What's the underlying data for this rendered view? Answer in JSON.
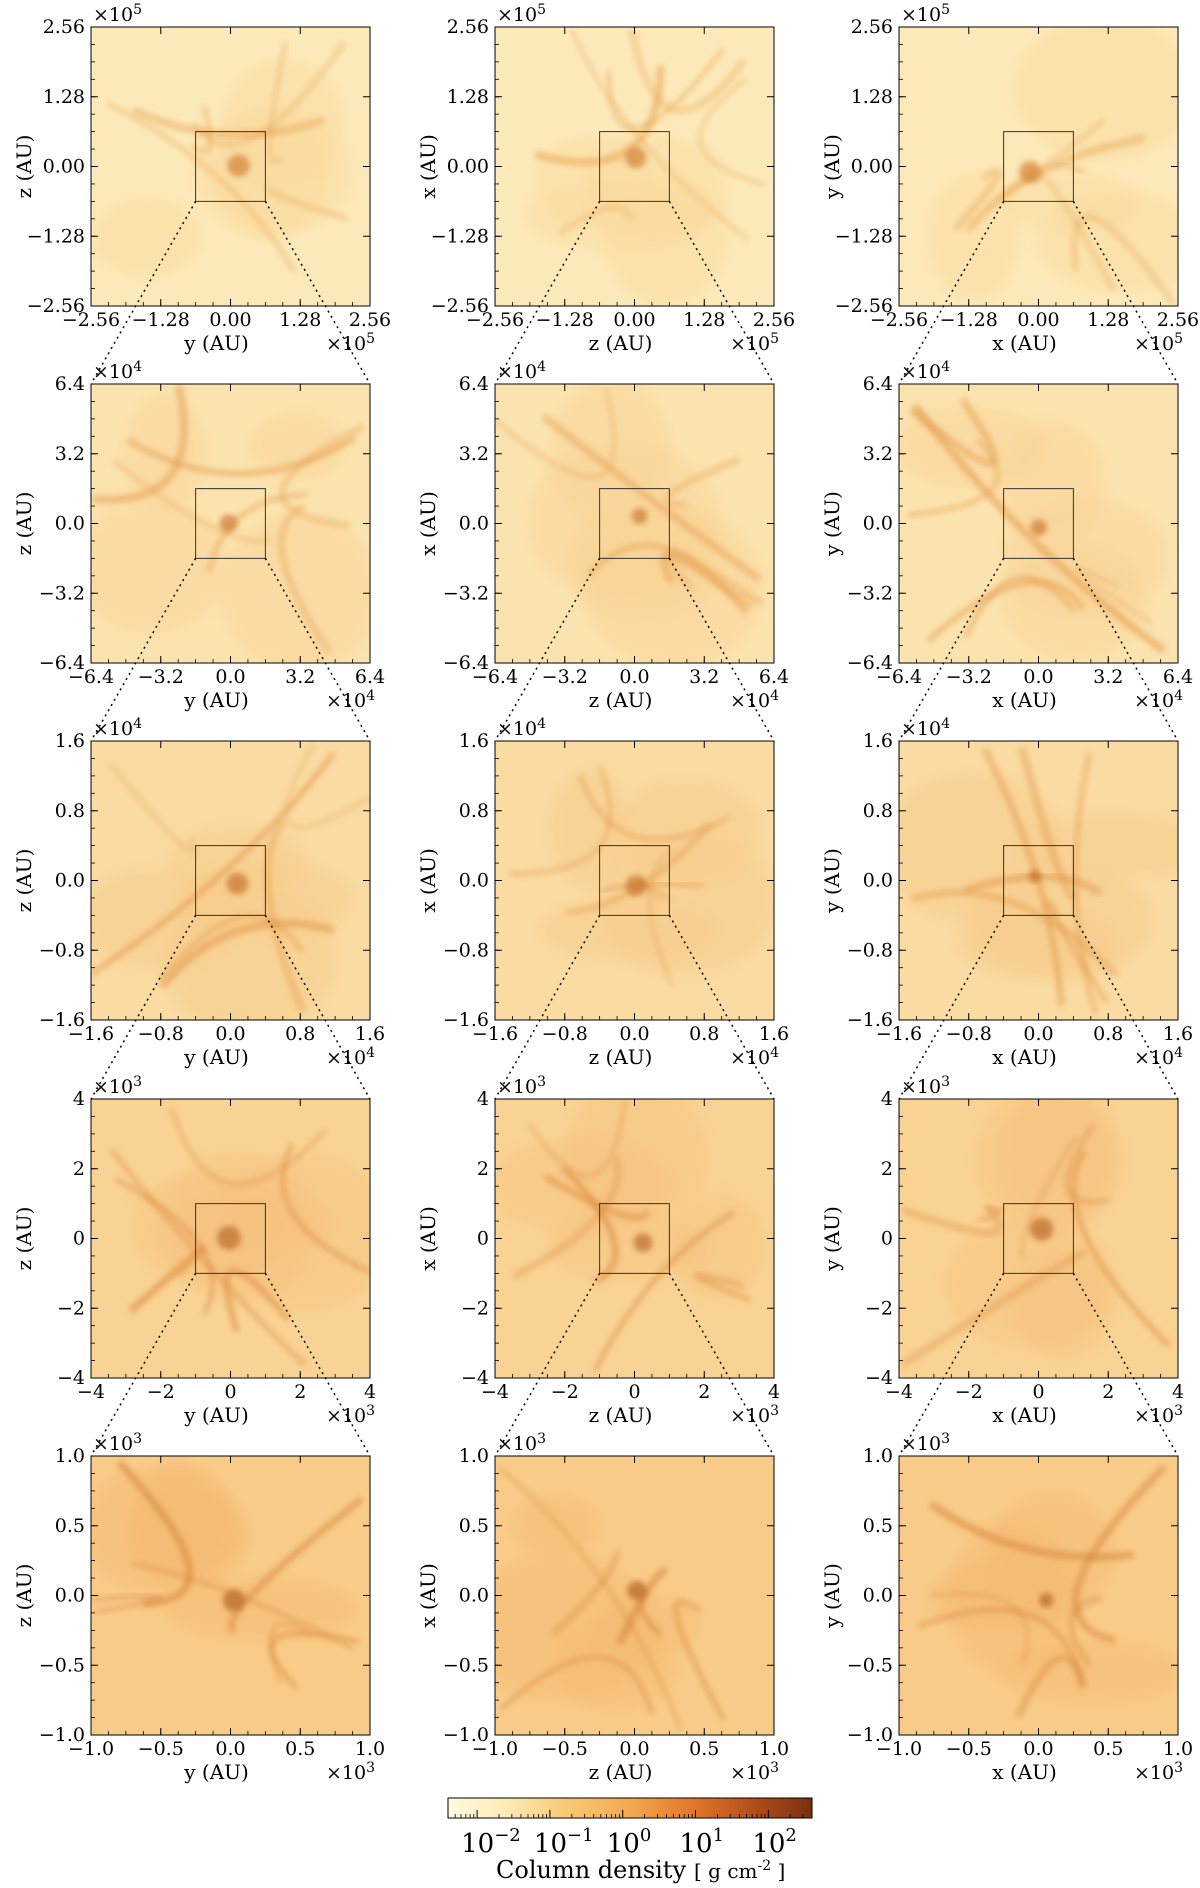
{
  "figure": {
    "columns": [
      {
        "xlabel": "y",
        "ylabel": "z"
      },
      {
        "xlabel": "z",
        "ylabel": "x"
      },
      {
        "xlabel": "x",
        "ylabel": "y"
      }
    ],
    "axis_unit": "AU",
    "rows": [
      {
        "multiplier_base": "×10",
        "multiplier_exp": "5",
        "range": [
          -2.56,
          2.56
        ],
        "ticks": [
          "−2.56",
          "−1.28",
          "0.00",
          "1.28",
          "2.56"
        ],
        "tick_values": [
          -2.56,
          -1.28,
          0.0,
          1.28,
          2.56
        ],
        "zoom_box": [
          -0.64,
          0.64
        ],
        "level": 0.12
      },
      {
        "multiplier_base": "×10",
        "multiplier_exp": "4",
        "range": [
          -6.4,
          6.4
        ],
        "ticks": [
          "−6.4",
          "−3.2",
          "0.0",
          "3.2",
          "6.4"
        ],
        "tick_values": [
          -6.4,
          -3.2,
          0.0,
          3.2,
          6.4
        ],
        "zoom_box": [
          -1.6,
          1.6
        ],
        "level": 0.22
      },
      {
        "multiplier_base": "×10",
        "multiplier_exp": "4",
        "range": [
          -1.6,
          1.6
        ],
        "ticks": [
          "−1.6",
          "−0.8",
          "0.0",
          "0.8",
          "1.6"
        ],
        "tick_values": [
          -1.6,
          -0.8,
          0.0,
          0.8,
          1.6
        ],
        "zoom_box": [
          -0.4,
          0.4
        ],
        "level": 0.35
      },
      {
        "multiplier_base": "×10",
        "multiplier_exp": "3",
        "range": [
          -4,
          4
        ],
        "ticks": [
          "−4",
          "−2",
          "0",
          "2",
          "4"
        ],
        "tick_values": [
          -4,
          -2,
          0,
          2,
          4
        ],
        "zoom_box": [
          -1,
          1
        ],
        "level": 0.48
      },
      {
        "multiplier_base": "×10",
        "multiplier_exp": "3",
        "range": [
          -1.0,
          1.0
        ],
        "ticks": [
          "−1.0",
          "−0.5",
          "0.0",
          "0.5",
          "1.0"
        ],
        "tick_values": [
          -1.0,
          -0.5,
          0.0,
          0.5,
          1.0
        ],
        "zoom_box": null,
        "level": 0.6
      }
    ]
  },
  "colorbar": {
    "label": "Column density",
    "unit": "[ g cm",
    "unit_exp": "-2",
    "unit_close": " ]",
    "tick_base": "10",
    "ticks": [
      {
        "exp": "−2",
        "log": -2
      },
      {
        "exp": "−1",
        "log": -1
      },
      {
        "exp": "0",
        "log": 0
      },
      {
        "exp": "1",
        "log": 1
      },
      {
        "exp": "2",
        "log": 2
      }
    ],
    "range_log": [
      -2.4,
      2.6
    ],
    "colors": [
      "#fffbe0",
      "#fde9b3",
      "#f9c873",
      "#f3a94e",
      "#e2782c",
      "#b5501a",
      "#7a3010"
    ]
  }
}
